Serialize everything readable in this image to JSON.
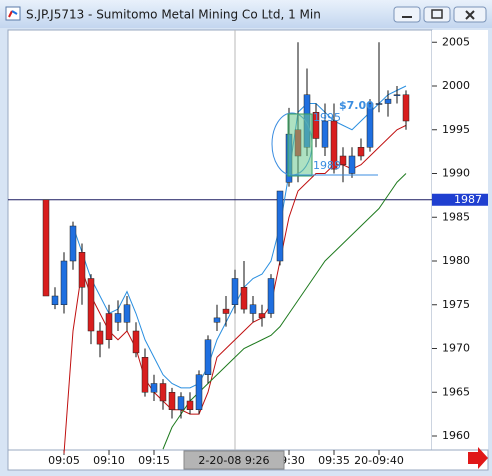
{
  "chart_data": {
    "type": "candlestick",
    "title": "S.JP.J5713 - Sumitomo Metal Mining Co Ltd, 1 Min",
    "categories": [
      null,
      null,
      "09:05",
      null,
      null,
      null,
      null,
      "09:10",
      null,
      null,
      null,
      null,
      "09:15",
      null,
      null,
      null,
      null,
      null,
      null,
      null,
      null,
      null,
      null,
      null,
      null,
      null,
      null,
      "09:30",
      null,
      null,
      null,
      null,
      "09:35",
      null,
      null,
      null,
      null,
      "20-09:40",
      null,
      null,
      null
    ],
    "open": [
      1987,
      1975,
      1975,
      1980,
      1981,
      1978,
      1972,
      1974,
      1973,
      1973,
      1972,
      1969,
      1965,
      1966,
      1965,
      1963,
      1964,
      1963,
      1967,
      1973,
      1974.5,
      1975,
      1977,
      1974,
      1974,
      1974,
      1980,
      1989,
      1995,
      1993,
      1997,
      1993,
      1996,
      1992,
      1990,
      1993,
      1993,
      1998,
      1998,
      1999,
      1999
    ],
    "high": [
      1987,
      1977,
      1981,
      1984.5,
      1982,
      1978.5,
      1973,
      1975,
      1975.5,
      1976,
      1973,
      1970,
      1967,
      1966.5,
      1965.5,
      1965,
      1965,
      1967.5,
      1971.5,
      1975,
      1976,
      1979,
      1980,
      1976,
      1975,
      1978.5,
      1988,
      1997.5,
      2005,
      2002,
      1998,
      1998,
      1998,
      1993,
      1993,
      1994,
      1998.5,
      2005,
      1999.5,
      2000,
      1999.5
    ],
    "low": [
      1976,
      1974.5,
      1974,
      1979,
      1975,
      1970.5,
      1969,
      1970,
      1972,
      1972,
      1969,
      1964.5,
      1964,
      1963,
      1962,
      1962,
      1962.5,
      1962.5,
      1966,
      1972,
      1972.5,
      1974,
      1974,
      1973,
      1972.5,
      1973.5,
      1979.5,
      1988.5,
      1989,
      1992,
      1993,
      1992,
      1990,
      1989,
      1989.5,
      1991.5,
      1992.5,
      1997,
      1996.5,
      1998,
      1995
    ],
    "close": [
      1976,
      1976,
      1980,
      1984,
      1977,
      1972,
      1970.5,
      1971,
      1974,
      1975,
      1969.5,
      1965,
      1966,
      1964,
      1963,
      1964.5,
      1963,
      1967,
      1971,
      1973.5,
      1974,
      1978,
      1974.5,
      1975,
      1973.5,
      1978,
      1988,
      1994.5,
      1992,
      1999,
      1994,
      1996,
      1990.5,
      1991,
      1992,
      1992,
      1998,
      1998,
      1998.5,
      1999,
      1996
    ],
    "up_color": "#1f6fe0",
    "down_color": "#d81e1e",
    "series": [
      {
        "color": "#2a8fe0",
        "values": [
          null,
          null,
          null,
          1984,
          1981,
          1978,
          1976,
          1974,
          1974.5,
          1976.5,
          1974,
          1971,
          1969,
          1967,
          1966,
          1965.5,
          1965.5,
          1966,
          1968,
          1971,
          1973,
          1975,
          1977,
          1978,
          1978.5,
          1980,
          1984,
          1990,
          1997,
          1998,
          1998,
          1997,
          1996,
          1995.5,
          1995,
          1996,
          1997,
          1998,
          1999,
          1999.5,
          2000
        ]
      },
      {
        "color": "#c01010",
        "values": [
          null,
          null,
          1958,
          1972,
          1979,
          1976,
          1974,
          1972,
          1971,
          1972,
          1970,
          1966.5,
          1965,
          1964,
          1963,
          1963,
          1962.5,
          1962.5,
          1965,
          1969,
          1970,
          1971,
          1972,
          1973,
          1973.5,
          1975,
          1980,
          1985,
          1988,
          1989,
          1990,
          1990,
          1991,
          1991,
          1990.5,
          1991,
          1992,
          1993,
          1994,
          1995,
          1995.5
        ]
      },
      {
        "color": "#1e7a1e",
        "values": [
          null,
          null,
          null,
          null,
          null,
          null,
          null,
          null,
          null,
          null,
          null,
          null,
          null,
          1958.5,
          1961,
          1962.5,
          1964,
          1965,
          1966,
          1967,
          1968,
          1969,
          1970,
          1970.5,
          1971,
          1971.5,
          1972.5,
          1974,
          1975.5,
          1977,
          1978.5,
          1980,
          1981,
          1982,
          1983,
          1984,
          1985,
          1986,
          1987.5,
          1989,
          1990
        ]
      }
    ],
    "ylim": [
      1958.4,
      2006.4
    ],
    "yticks": [
      1960,
      1965,
      1970,
      1975,
      1980,
      1985,
      1990,
      1995,
      2000,
      2005
    ],
    "hline": 1987,
    "cursor_label": "2-20-08 9:26",
    "annotations": [
      "1995",
      "$7.00",
      "1989"
    ]
  }
}
